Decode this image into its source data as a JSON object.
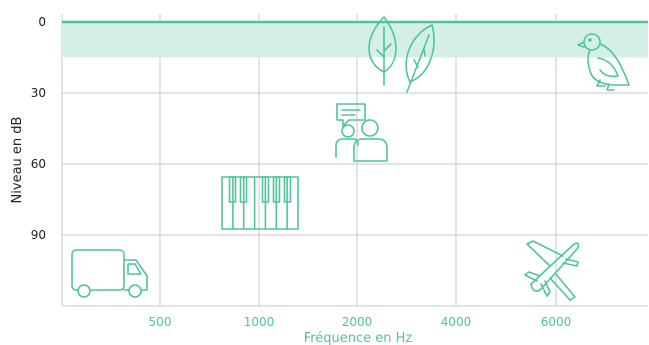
{
  "chart_data": {
    "type": "scatter",
    "title": "",
    "xlabel": "Fréquence en Hz",
    "ylabel": "Niveau en dB",
    "x_ticks": [
      "500",
      "1000",
      "2000",
      "4000",
      "6000"
    ],
    "y_ticks": [
      "0",
      "30",
      "60",
      "90"
    ],
    "ylim": [
      0,
      120
    ],
    "y_inverted": true,
    "grid": true,
    "normal_hearing_band": {
      "from_db": 0,
      "to_db": 15,
      "color": "#d4efe4"
    },
    "sounds": [
      {
        "icon": "truck-icon",
        "frequency_band": "250",
        "level_db": 105
      },
      {
        "icon": "piano-icon",
        "frequency_band": "1000",
        "level_db": 75
      },
      {
        "icon": "conversation-icon",
        "frequency_band": "2000",
        "level_db": 50
      },
      {
        "icon": "leaves-icon",
        "frequency_band": "2000-4000",
        "level_db": 12
      },
      {
        "icon": "bird-icon",
        "frequency_band": "6000-8000",
        "level_db": 15
      },
      {
        "icon": "airplane-icon",
        "frequency_band": "6000",
        "level_db": 100
      }
    ],
    "colors": {
      "accent": "#4ec49e",
      "grid": "#c8c8c8",
      "band": "#d4efe4",
      "tick_y": "#222222"
    }
  }
}
